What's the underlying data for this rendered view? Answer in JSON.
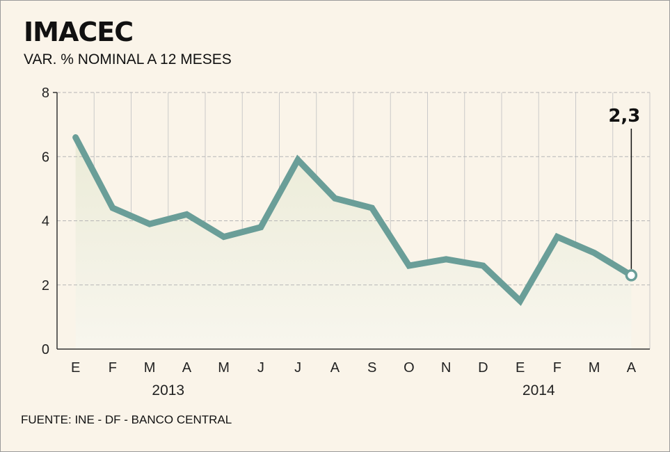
{
  "header": {
    "title": "IMACEC",
    "subtitle": "VAR. % NOMINAL A 12 MESES"
  },
  "footer": {
    "source": "FUENTE: INE - DF - BANCO CENTRAL"
  },
  "colors": {
    "line": "#6a9e98",
    "background": "#faf4e9",
    "grid": "#c9c9c9",
    "area": "#ebebd7"
  },
  "chart_data": {
    "type": "line",
    "title": "IMACEC",
    "subtitle": "VAR. % NOMINAL A 12 MESES",
    "categories": [
      "E",
      "F",
      "M",
      "A",
      "M",
      "J",
      "J",
      "A",
      "S",
      "O",
      "N",
      "D",
      "E",
      "F",
      "M",
      "A"
    ],
    "year_groups": [
      {
        "label": "2013",
        "center_index": 3
      },
      {
        "label": "2014",
        "center_index": 13
      }
    ],
    "series": [
      {
        "values": [
          6.6,
          4.4,
          3.9,
          4.2,
          3.5,
          3.8,
          5.9,
          4.7,
          4.4,
          2.6,
          2.8,
          2.6,
          1.5,
          3.5,
          3.0,
          2.3
        ]
      }
    ],
    "ylim": [
      0,
      8
    ],
    "yticks": [
      "0",
      "2",
      "4",
      "6",
      "8"
    ],
    "grid": true,
    "annotation": {
      "text": "2,3",
      "index": 15
    }
  }
}
